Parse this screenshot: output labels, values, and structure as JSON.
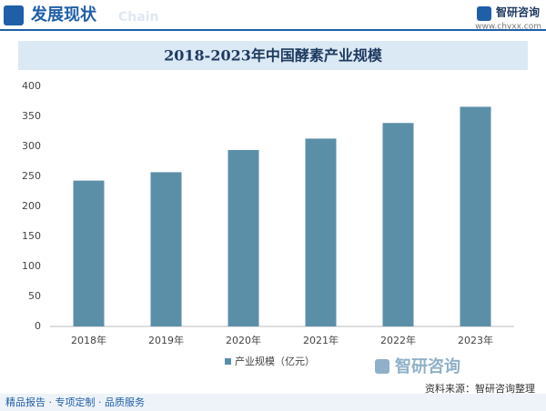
{
  "header": {
    "title": "发展现状",
    "subtitle": "Chain"
  },
  "logo": {
    "name": "智研咨询",
    "url": "www.chyxx.com"
  },
  "chart_data": {
    "type": "bar",
    "title": "2018-2023年中国酵素产业规模",
    "categories": [
      "2018年",
      "2019年",
      "2020年",
      "2021年",
      "2022年",
      "2023年"
    ],
    "series": [
      {
        "name": "产业规模（亿元）",
        "color": "#5b8fa8",
        "values": [
          243,
          257,
          294,
          313,
          339,
          366
        ]
      }
    ],
    "ylim": [
      0,
      400
    ],
    "yticks": [
      0,
      50,
      100,
      150,
      200,
      250,
      300,
      350,
      400
    ],
    "legend": "bottom"
  },
  "watermark": "智研咨询",
  "source": "资料来源：智研咨询整理",
  "footer": "精品报告 · 专项定制 · 品质服务"
}
